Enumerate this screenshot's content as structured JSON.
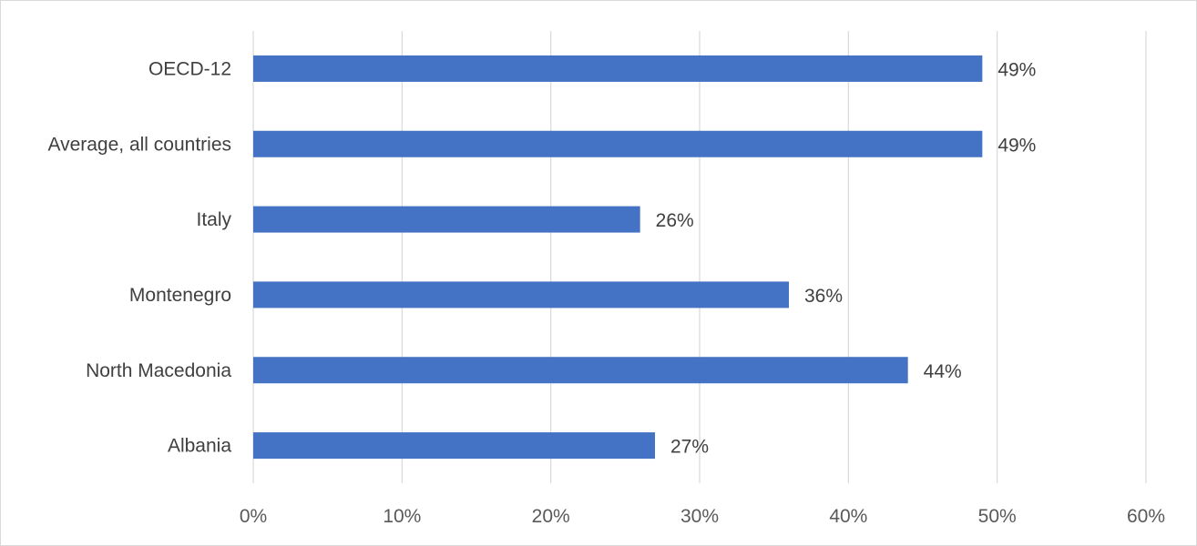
{
  "chart_data": {
    "type": "bar",
    "orientation": "horizontal",
    "categories": [
      "OECD-12",
      "Average, all countries",
      "Italy",
      "Montenegro",
      "North Macedonia",
      "Albania"
    ],
    "values": [
      49,
      49,
      26,
      36,
      44,
      27
    ],
    "data_labels": [
      "49%",
      "49%",
      "26%",
      "36%",
      "44%",
      "27%"
    ],
    "x_ticks": [
      0,
      10,
      20,
      30,
      40,
      50,
      60
    ],
    "x_tick_labels": [
      "0%",
      "10%",
      "20%",
      "30%",
      "40%",
      "50%",
      "60%"
    ],
    "xlim": [
      0,
      60
    ],
    "grid": "vertical",
    "legend": "none",
    "bar_color": "#4472c4",
    "grid_color": "#d9d9d9"
  }
}
